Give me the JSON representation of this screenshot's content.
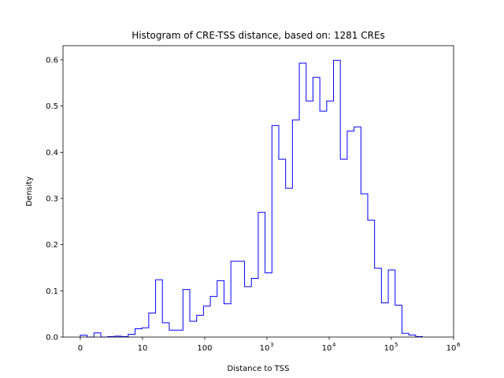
{
  "chart_data": {
    "type": "histogram",
    "title": "Histogram of CRE-TSS distance, based on: 1281 CREs",
    "xlabel": "Distance to TSS",
    "ylabel": "Density",
    "xscale": "symlog",
    "linthresh": 10,
    "xlim": [
      -2.78,
      1000000
    ],
    "ylim": [
      0,
      0.6307
    ],
    "bin_range": [
      0,
      316228
    ],
    "bins": 50,
    "color": "#0000ff",
    "densities": [
      0.004,
      0,
      0.009,
      0,
      0.001,
      0.002,
      0.001,
      0.006,
      0.018,
      0.02,
      0.052,
      0.124,
      0.031,
      0.015,
      0.015,
      0.103,
      0.034,
      0.047,
      0.067,
      0.088,
      0.122,
      0.072,
      0.164,
      0.164,
      0.109,
      0.127,
      0.27,
      0.139,
      0.458,
      0.385,
      0.322,
      0.47,
      0.593,
      0.511,
      0.562,
      0.489,
      0.511,
      0.599,
      0.385,
      0.446,
      0.455,
      0.31,
      0.253,
      0.149,
      0.074,
      0.145,
      0.069,
      0.008,
      0.0045,
      0.001
    ],
    "yticks": [
      {
        "value": 0.0,
        "label": "0.0"
      },
      {
        "value": 0.1,
        "label": "0.1"
      },
      {
        "value": 0.2,
        "label": "0.2"
      },
      {
        "value": 0.3,
        "label": "0.3"
      },
      {
        "value": 0.4,
        "label": "0.4"
      },
      {
        "value": 0.5,
        "label": "0.5"
      },
      {
        "value": 0.6,
        "label": "0.6"
      }
    ],
    "xticks": [
      {
        "value": 0,
        "label": "0",
        "exp": ""
      },
      {
        "value": 10,
        "label": "10",
        "exp": ""
      },
      {
        "value": 100,
        "label": "100",
        "exp": ""
      },
      {
        "value": 1000,
        "label": "10",
        "exp": "3"
      },
      {
        "value": 10000,
        "label": "10",
        "exp": "4"
      },
      {
        "value": 100000,
        "label": "10",
        "exp": "5"
      },
      {
        "value": 1000000,
        "label": "10",
        "exp": "6"
      }
    ],
    "grid": false
  }
}
